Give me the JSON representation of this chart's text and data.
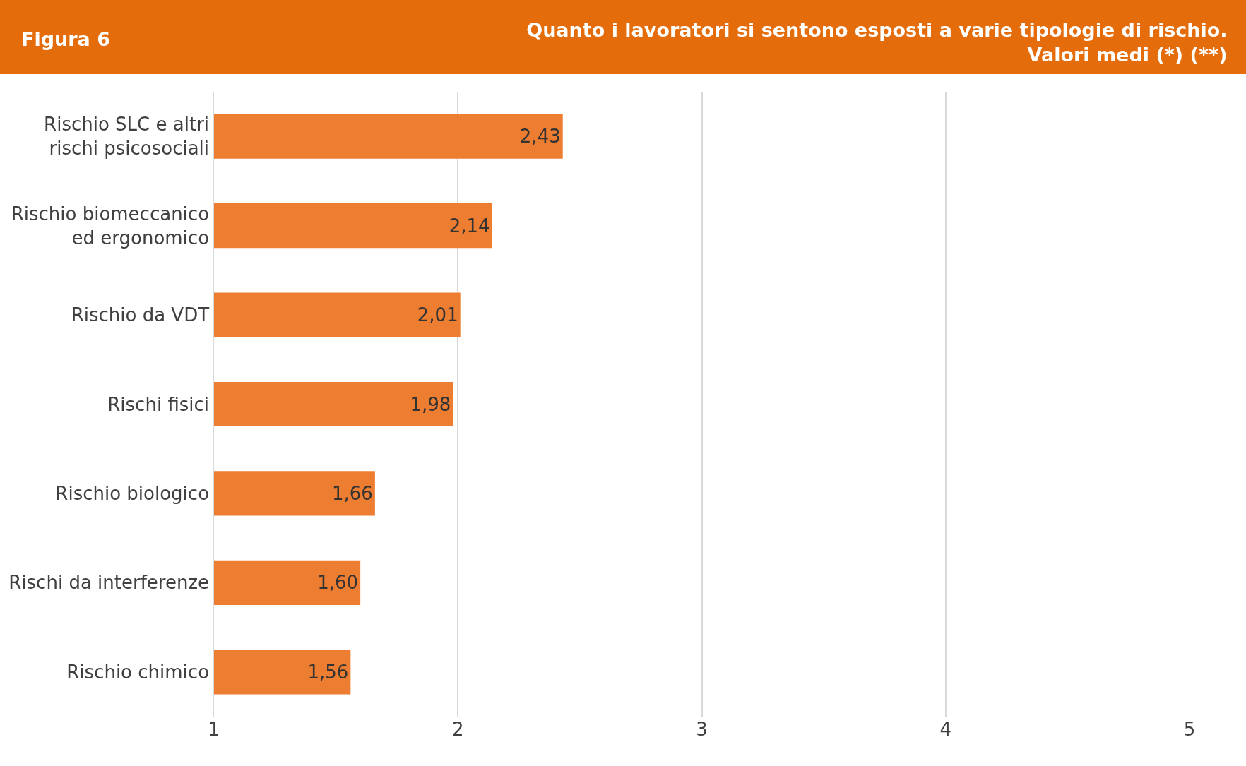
{
  "chart_data": {
    "type": "bar",
    "orientation": "horizontal",
    "title": "Quanto i lavoratori si sentono esposti a varie tipologie di rischio.\nValori medi (*) (**)",
    "annotations": [
      "Figura 6"
    ],
    "categories": [
      "Rischio SLC e altri\nrischi psicosociali",
      "Rischio biomeccanico\ned ergonomico",
      "Rischio da VDT",
      "Rischi fisici",
      "Rischio biologico",
      "Rischi da interferenze",
      "Rischio chimico"
    ],
    "values": [
      2.43,
      2.14,
      2.01,
      1.98,
      1.66,
      1.6,
      1.56
    ],
    "value_labels": [
      "2,43",
      "2,14",
      "2,01",
      "1,98",
      "1,66",
      "1,60",
      "1,56"
    ],
    "color": "#ed7d31",
    "xlim": [
      1,
      5
    ],
    "xticks": [
      1,
      2,
      3,
      4,
      5
    ],
    "grid": "x"
  }
}
